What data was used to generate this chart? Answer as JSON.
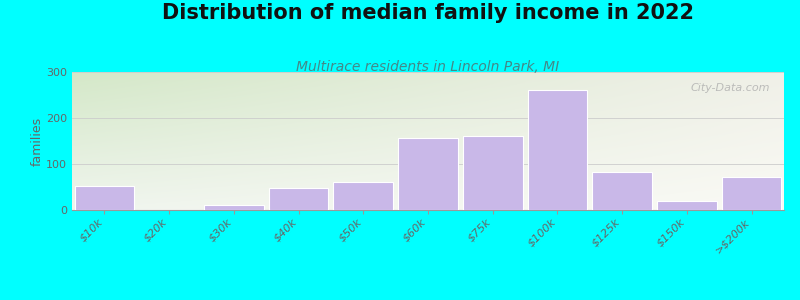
{
  "title": "Distribution of median family income in 2022",
  "subtitle": "Multirace residents in Lincoln Park, MI",
  "ylabel": "families",
  "categories": [
    "$10k",
    "$20k",
    "$30k",
    "$40k",
    "$50k",
    "$60k",
    "$75k",
    "$100k",
    "$125k",
    "$150k",
    ">$200k"
  ],
  "values": [
    52,
    0,
    10,
    47,
    60,
    157,
    160,
    260,
    82,
    20,
    72
  ],
  "bar_color": "#c9b8e8",
  "bar_edge_color": "#ffffff",
  "background_color": "#00ffff",
  "grad_left": "#d4e8c8",
  "grad_right": "#f5f5ee",
  "grad_top": "#d4e8c8",
  "grad_bottom": "#f8f8f0",
  "ylim": [
    0,
    300
  ],
  "yticks": [
    0,
    100,
    200,
    300
  ],
  "title_fontsize": 15,
  "subtitle_fontsize": 10,
  "ylabel_fontsize": 9,
  "tick_fontsize": 8,
  "watermark": "City-Data.com"
}
